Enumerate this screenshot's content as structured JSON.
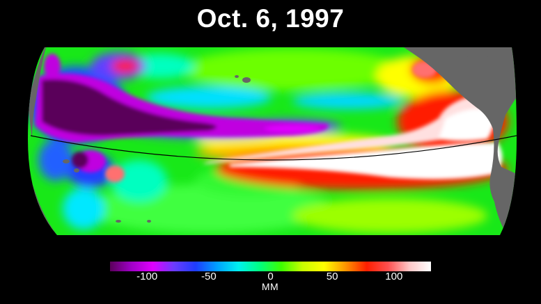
{
  "title": "Oct. 6, 1997",
  "legend": {
    "unit": "MM",
    "min": -130,
    "max": 130,
    "ticks": [
      {
        "value": -100,
        "label": "-100"
      },
      {
        "value": -50,
        "label": "-50"
      },
      {
        "value": 0,
        "label": "0"
      },
      {
        "value": 50,
        "label": "50"
      },
      {
        "value": 100,
        "label": "100"
      }
    ],
    "colors": [
      "#5a005a",
      "#a000c8",
      "#e000ff",
      "#6a3cff",
      "#1e3cff",
      "#00a0ff",
      "#00f0f0",
      "#00ff80",
      "#3cff00",
      "#c8ff00",
      "#ffff00",
      "#ff9600",
      "#ff1e00",
      "#ff5050",
      "#ffc8c8",
      "#ffffff"
    ]
  },
  "map": {
    "background": "#000000",
    "land_color": "#666666"
  }
}
